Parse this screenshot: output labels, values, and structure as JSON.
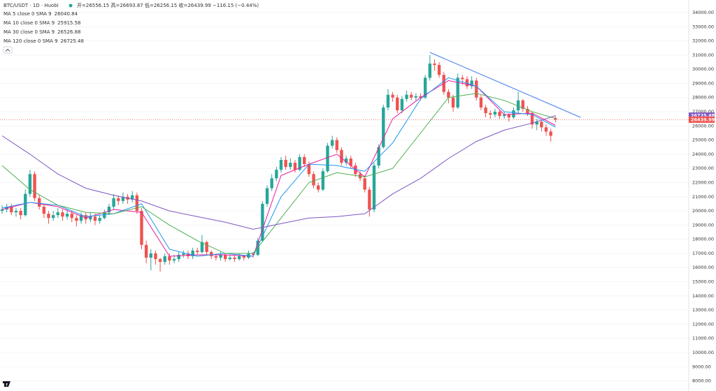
{
  "chart_data": {
    "type": "candlestick",
    "symbol": "BTC/USDT · 1D · Huobi",
    "ohlc_header": "开=26556.15 高=26693.87 低=26256.15 收=26439.99 −116.15 (−0.44%)",
    "up_color": "#26a69a",
    "down_color": "#ef5350",
    "ylim": [
      7288,
      34887
    ],
    "yticks": [
      {
        "value": 34000,
        "label": "34000.00"
      },
      {
        "value": 33000,
        "label": "33000.00"
      },
      {
        "value": 32000,
        "label": "32000.00"
      },
      {
        "value": 31000,
        "label": "31000.00"
      },
      {
        "value": 30000,
        "label": "30000.00"
      },
      {
        "value": 29000,
        "label": "29000.00"
      },
      {
        "value": 28000,
        "label": "28000.00"
      },
      {
        "value": 27000,
        "label": "27000.00"
      },
      {
        "value": 26000,
        "label": "26000.00"
      },
      {
        "value": 25000,
        "label": "25000.00"
      },
      {
        "value": 24000,
        "label": "24000.00"
      },
      {
        "value": 23000,
        "label": "23000.00"
      },
      {
        "value": 22000,
        "label": "22000.00"
      },
      {
        "value": 21000,
        "label": "21000.00"
      },
      {
        "value": 20000,
        "label": "20000.00"
      },
      {
        "value": 19000,
        "label": "19000.00"
      },
      {
        "value": 18000,
        "label": "18000.00"
      },
      {
        "value": 17000,
        "label": "17000.00"
      },
      {
        "value": 16000,
        "label": "16000.00"
      },
      {
        "value": 15000,
        "label": "15000.00"
      },
      {
        "value": 14000,
        "label": "14000.00"
      },
      {
        "value": 13000,
        "label": "13000.00"
      },
      {
        "value": 12000,
        "label": "12000.00"
      },
      {
        "value": 11000,
        "label": "11000.00"
      },
      {
        "value": 10000,
        "label": "10000.00"
      },
      {
        "value": 9000,
        "label": "9000.00"
      },
      {
        "value": 8000,
        "label": "8000.00"
      }
    ],
    "candles": [
      [
        20000,
        20400,
        19800,
        20100
      ],
      [
        20100,
        20500,
        19900,
        20300
      ],
      [
        20300,
        20500,
        19700,
        19900
      ],
      [
        19900,
        20200,
        19600,
        20000
      ],
      [
        20000,
        20200,
        19400,
        19700
      ],
      [
        19700,
        21500,
        19600,
        21200
      ],
      [
        21200,
        22900,
        21000,
        22600
      ],
      [
        22600,
        22800,
        20700,
        20900
      ],
      [
        20900,
        21100,
        20100,
        20300
      ],
      [
        20300,
        20500,
        19500,
        19800
      ],
      [
        19800,
        20000,
        19100,
        19500
      ],
      [
        19500,
        20000,
        19300,
        19700
      ],
      [
        19700,
        20200,
        19500,
        19900
      ],
      [
        19900,
        20100,
        19300,
        19600
      ],
      [
        19600,
        20100,
        19400,
        19800
      ],
      [
        19800,
        20000,
        19200,
        19500
      ],
      [
        19500,
        19700,
        18900,
        19300
      ],
      [
        19300,
        19900,
        19100,
        19700
      ],
      [
        19700,
        19900,
        19100,
        19400
      ],
      [
        19400,
        19900,
        19200,
        19600
      ],
      [
        19600,
        19800,
        19000,
        19300
      ],
      [
        19300,
        19700,
        19100,
        19500
      ],
      [
        19500,
        20100,
        19400,
        19900
      ],
      [
        19900,
        20500,
        19700,
        20300
      ],
      [
        20300,
        21200,
        20100,
        20900
      ],
      [
        20900,
        21100,
        20400,
        20700
      ],
      [
        20700,
        21300,
        20500,
        21000
      ],
      [
        21000,
        21200,
        20500,
        20800
      ],
      [
        20800,
        21400,
        20600,
        21100
      ],
      [
        21100,
        21300,
        19800,
        20000
      ],
      [
        20000,
        20200,
        17300,
        17600
      ],
      [
        17600,
        17900,
        16300,
        16700
      ],
      [
        16700,
        17300,
        15800,
        17000
      ],
      [
        17000,
        17200,
        16200,
        16600
      ],
      [
        16600,
        16700,
        15700,
        16400
      ],
      [
        16400,
        17000,
        16200,
        16800
      ],
      [
        16800,
        17000,
        16200,
        16500
      ],
      [
        16500,
        16900,
        16300,
        16600
      ],
      [
        16600,
        17100,
        16400,
        16900
      ],
      [
        16900,
        17200,
        16700,
        17000
      ],
      [
        17000,
        17200,
        16600,
        16800
      ],
      [
        16800,
        17400,
        16600,
        17200
      ],
      [
        17200,
        17400,
        16900,
        17100
      ],
      [
        17100,
        18300,
        17000,
        17800
      ],
      [
        17800,
        17900,
        16900,
        17100
      ],
      [
        17100,
        17200,
        16600,
        16800
      ],
      [
        16800,
        17000,
        16500,
        16700
      ],
      [
        16700,
        17100,
        16500,
        16900
      ],
      [
        16900,
        17000,
        16400,
        16600
      ],
      [
        16600,
        16900,
        16500,
        16700
      ],
      [
        16700,
        16900,
        16400,
        16600
      ],
      [
        16600,
        17000,
        16500,
        16800
      ],
      [
        16800,
        16900,
        16500,
        16700
      ],
      [
        16700,
        17200,
        16600,
        17000
      ],
      [
        17000,
        17100,
        16700,
        16900
      ],
      [
        16900,
        18100,
        16800,
        17900
      ],
      [
        17900,
        20700,
        17800,
        20500
      ],
      [
        20500,
        21800,
        20300,
        21600
      ],
      [
        21600,
        22600,
        21400,
        22300
      ],
      [
        22300,
        23100,
        22100,
        22900
      ],
      [
        22900,
        23800,
        22700,
        23600
      ],
      [
        23600,
        23900,
        22900,
        23100
      ],
      [
        23100,
        23700,
        22900,
        23400
      ],
      [
        23400,
        23600,
        22700,
        22900
      ],
      [
        22900,
        24000,
        22800,
        23800
      ],
      [
        23800,
        24000,
        23100,
        23300
      ],
      [
        23300,
        23500,
        22400,
        22600
      ],
      [
        22600,
        22800,
        21600,
        21800
      ],
      [
        21800,
        22000,
        21300,
        21500
      ],
      [
        21500,
        23000,
        21400,
        22800
      ],
      [
        22800,
        24800,
        22700,
        24600
      ],
      [
        24600,
        25300,
        24400,
        25000
      ],
      [
        25000,
        25200,
        24100,
        24300
      ],
      [
        24300,
        24500,
        23200,
        23400
      ],
      [
        23400,
        23900,
        23200,
        23700
      ],
      [
        23700,
        23900,
        23000,
        23200
      ],
      [
        23200,
        23400,
        22400,
        22600
      ],
      [
        22600,
        22800,
        22100,
        22300
      ],
      [
        22300,
        22500,
        21300,
        21500
      ],
      [
        21500,
        21700,
        19600,
        20100
      ],
      [
        20100,
        23400,
        19900,
        23200
      ],
      [
        23200,
        24700,
        23000,
        24500
      ],
      [
        24500,
        27500,
        24400,
        27300
      ],
      [
        27300,
        28600,
        27100,
        28200
      ],
      [
        28200,
        28400,
        27700,
        28000
      ],
      [
        28000,
        28200,
        26900,
        27100
      ],
      [
        27100,
        28100,
        26900,
        27900
      ],
      [
        27900,
        28500,
        27700,
        28200
      ],
      [
        28200,
        28400,
        27800,
        28000
      ],
      [
        28000,
        28300,
        27800,
        28100
      ],
      [
        28100,
        28300,
        27800,
        28000
      ],
      [
        28000,
        29600,
        27900,
        29400
      ],
      [
        29400,
        31000,
        29200,
        30400
      ],
      [
        30400,
        30700,
        29900,
        30300
      ],
      [
        30300,
        30500,
        29400,
        29600
      ],
      [
        29600,
        29800,
        28200,
        28400
      ],
      [
        28400,
        28600,
        27600,
        28000
      ],
      [
        28000,
        28200,
        27000,
        27300
      ],
      [
        27300,
        29700,
        27200,
        29400
      ],
      [
        29400,
        29600,
        28900,
        29300
      ],
      [
        29300,
        29500,
        28600,
        28800
      ],
      [
        28800,
        29500,
        28600,
        29200
      ],
      [
        29200,
        29400,
        27800,
        28000
      ],
      [
        28000,
        28200,
        27100,
        27300
      ],
      [
        27300,
        27500,
        26600,
        26900
      ],
      [
        26900,
        27100,
        26500,
        26800
      ],
      [
        26800,
        27200,
        26600,
        27000
      ],
      [
        27000,
        27100,
        26500,
        26700
      ],
      [
        26700,
        27000,
        26500,
        26800
      ],
      [
        26800,
        26900,
        26300,
        26600
      ],
      [
        26600,
        27300,
        26500,
        27100
      ],
      [
        27100,
        28400,
        26900,
        27800
      ],
      [
        27800,
        27900,
        27000,
        27200
      ],
      [
        27200,
        27400,
        26700,
        26900
      ],
      [
        26900,
        27000,
        25800,
        26100
      ],
      [
        26100,
        26500,
        25700,
        26300
      ],
      [
        26300,
        26400,
        25600,
        25900
      ],
      [
        25900,
        26100,
        25300,
        25600
      ],
      [
        25600,
        25800,
        24900,
        25300
      ],
      [
        26556.15,
        26693.87,
        26256.15,
        26439.99
      ]
    ],
    "series": [
      {
        "name": "MA 5 close 0 SMA 9",
        "value_label": "26040.84",
        "color": "#e91e9c",
        "x": [
          0,
          6,
          12,
          18,
          24,
          30,
          36,
          42,
          48,
          54,
          60,
          66,
          72,
          78,
          84,
          90,
          96,
          102,
          108,
          114,
          119
        ],
        "values": [
          20100,
          20600,
          20300,
          19500,
          20100,
          19900,
          16800,
          16900,
          16900,
          16800,
          22500,
          23300,
          24000,
          22400,
          26500,
          28000,
          29200,
          28800,
          26800,
          26900,
          26040.84
        ]
      },
      {
        "name": "MA 10 close 0 SMA 9",
        "value_label": "25915.58",
        "color": "#2196f3",
        "x": [
          0,
          6,
          12,
          18,
          24,
          30,
          36,
          42,
          48,
          54,
          60,
          66,
          72,
          78,
          84,
          90,
          96,
          102,
          108,
          114,
          119
        ],
        "values": [
          20200,
          20600,
          20400,
          19600,
          19800,
          20500,
          17300,
          16800,
          17000,
          16800,
          21000,
          23300,
          23200,
          22800,
          24800,
          27900,
          29400,
          28800,
          27000,
          26800,
          25915.58
        ]
      },
      {
        "name": "MA 30 close 0 SMA 9",
        "value_label": "26526.88",
        "color": "#4caf50",
        "x": [
          0,
          6,
          12,
          18,
          24,
          30,
          36,
          42,
          48,
          54,
          60,
          66,
          72,
          78,
          84,
          90,
          96,
          102,
          108,
          114,
          119
        ],
        "values": [
          23200,
          21500,
          20400,
          19900,
          19800,
          20300,
          19000,
          17900,
          17000,
          17000,
          19500,
          22000,
          22700,
          22400,
          23000,
          25500,
          28000,
          28300,
          27800,
          27000,
          26526.88
        ]
      },
      {
        "name": "MA 120 close 0 SMA 9",
        "value_label": "26725.48",
        "color": "#7e57c2",
        "x": [
          0,
          6,
          12,
          18,
          24,
          30,
          36,
          42,
          48,
          54,
          60,
          66,
          72,
          78,
          84,
          90,
          96,
          102,
          108,
          114,
          119
        ],
        "values": [
          25300,
          24000,
          22600,
          21600,
          21100,
          20700,
          20000,
          19600,
          19200,
          18700,
          19100,
          19500,
          19600,
          19800,
          21200,
          22300,
          23700,
          24900,
          25700,
          26200,
          26725.48
        ]
      }
    ],
    "trendline": {
      "color": "#5b8def",
      "x": [
        92,
        124.4
      ],
      "values": [
        31190,
        26606
      ]
    },
    "last_price": {
      "value": 26439.99,
      "label": "26439.99",
      "color": "#ef5350"
    },
    "ma_price": {
      "value": 26725.48,
      "label": "26725.48",
      "color": "#7e57c2"
    }
  }
}
